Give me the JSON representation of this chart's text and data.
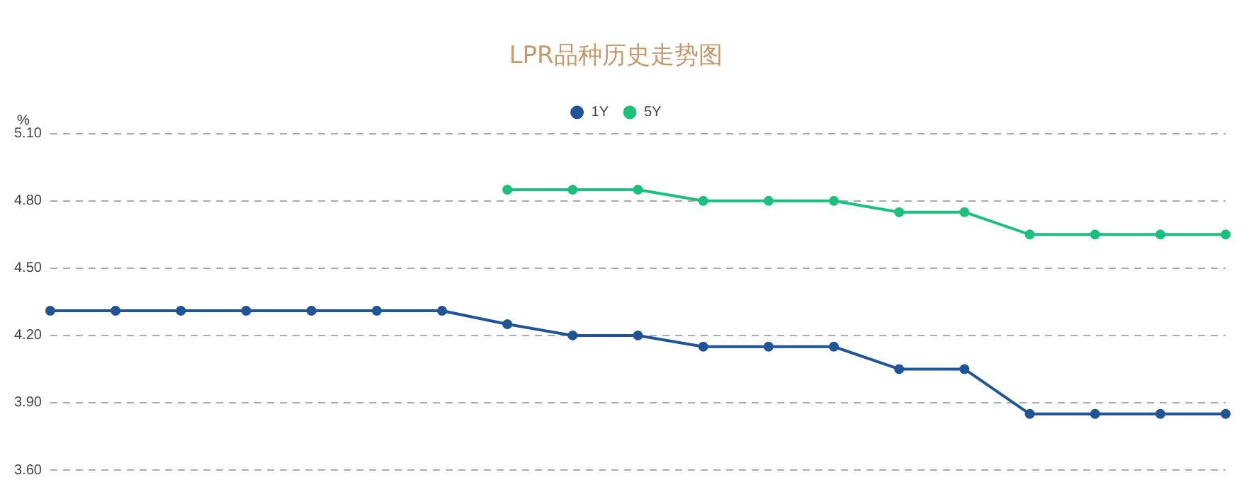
{
  "chart_data": {
    "type": "line",
    "title": "LPR品种历史走势图",
    "ylabel": "%",
    "categories": [
      null,
      null,
      null,
      null,
      null,
      null,
      null,
      null,
      null,
      null,
      null,
      null,
      null,
      null,
      null,
      null,
      null,
      null,
      null
    ],
    "series": [
      {
        "name": "1Y",
        "color": "#1f5597",
        "values": [
          4.31,
          4.31,
          4.31,
          4.31,
          4.31,
          4.31,
          4.31,
          4.25,
          4.2,
          4.2,
          4.15,
          4.15,
          4.15,
          4.05,
          4.05,
          3.85,
          3.85,
          3.85,
          3.85
        ]
      },
      {
        "name": "5Y",
        "color": "#1dbf7c",
        "values": [
          null,
          null,
          null,
          null,
          null,
          null,
          null,
          4.85,
          4.85,
          4.85,
          4.8,
          4.8,
          4.8,
          4.75,
          4.75,
          4.65,
          4.65,
          4.65,
          4.65
        ]
      }
    ],
    "ylim": [
      3.6,
      5.1
    ],
    "yticks": [
      {
        "value": 3.6,
        "label": "3.60"
      },
      {
        "value": 3.9,
        "label": "3.90"
      },
      {
        "value": 4.2,
        "label": "4.20"
      },
      {
        "value": 4.5,
        "label": "4.50"
      },
      {
        "value": 4.8,
        "label": "4.80"
      },
      {
        "value": 5.1,
        "label": "5.10"
      }
    ],
    "grid": "y",
    "legend": "top",
    "marker": "circle",
    "line_style": "solid",
    "tick_labels": "y"
  }
}
